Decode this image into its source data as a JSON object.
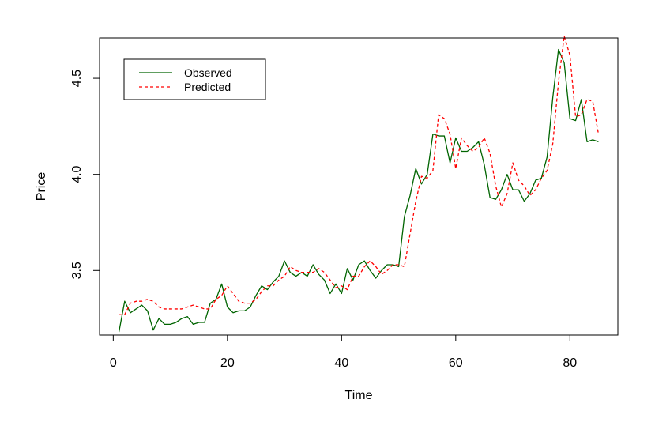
{
  "chart_data": {
    "type": "line",
    "title": "",
    "xlabel": "Time",
    "ylabel": "Price",
    "xlim": [
      -2.4,
      88.4
    ],
    "ylim": [
      3.164,
      4.71
    ],
    "x_ticks": [
      0,
      20,
      40,
      60,
      80
    ],
    "y_ticks": [
      3.5,
      4.0,
      4.5
    ],
    "x_tick_labels": [
      "0",
      "20",
      "40",
      "60",
      "80"
    ],
    "y_tick_labels": [
      "3.5",
      "4.0",
      "4.5"
    ],
    "grid": false,
    "legend_position": "top-left",
    "series": [
      {
        "name": "Observed",
        "color": "#006400",
        "line_style": "solid",
        "x": [
          1,
          2,
          3,
          4,
          5,
          6,
          7,
          8,
          9,
          10,
          11,
          12,
          13,
          14,
          15,
          16,
          17,
          18,
          19,
          20,
          21,
          22,
          23,
          24,
          25,
          26,
          27,
          28,
          29,
          30,
          31,
          32,
          33,
          34,
          35,
          36,
          37,
          38,
          39,
          40,
          41,
          42,
          43,
          44,
          45,
          46,
          47,
          48,
          49,
          50,
          51,
          52,
          53,
          54,
          55,
          56,
          57,
          58,
          59,
          60,
          61,
          62,
          63,
          64,
          65,
          66,
          67,
          68,
          69,
          70,
          71,
          72,
          73,
          74,
          75,
          76,
          77,
          78,
          79,
          80,
          81,
          82,
          83,
          84,
          85
        ],
        "values": [
          3.18,
          3.34,
          3.28,
          3.3,
          3.32,
          3.29,
          3.19,
          3.25,
          3.22,
          3.22,
          3.23,
          3.25,
          3.26,
          3.22,
          3.23,
          3.23,
          3.33,
          3.35,
          3.43,
          3.31,
          3.28,
          3.29,
          3.29,
          3.31,
          3.37,
          3.42,
          3.4,
          3.44,
          3.47,
          3.55,
          3.49,
          3.47,
          3.49,
          3.47,
          3.53,
          3.48,
          3.45,
          3.38,
          3.43,
          3.38,
          3.51,
          3.45,
          3.53,
          3.55,
          3.5,
          3.46,
          3.5,
          3.53,
          3.53,
          3.52,
          3.78,
          3.89,
          4.03,
          3.95,
          4.0,
          4.21,
          4.2,
          4.2,
          4.06,
          4.19,
          4.12,
          4.12,
          4.14,
          4.17,
          4.05,
          3.88,
          3.87,
          3.92,
          4.0,
          3.92,
          3.92,
          3.86,
          3.9,
          3.97,
          3.98,
          4.09,
          4.4,
          4.65,
          4.58,
          4.29,
          4.28,
          4.39,
          4.17,
          4.18,
          4.17
        ]
      },
      {
        "name": "Predicted",
        "color": "#ff0000",
        "line_style": "dashed",
        "x": [
          1,
          2,
          3,
          4,
          5,
          6,
          7,
          8,
          9,
          10,
          11,
          12,
          13,
          14,
          15,
          16,
          17,
          18,
          19,
          20,
          21,
          22,
          23,
          24,
          25,
          26,
          27,
          28,
          29,
          30,
          31,
          32,
          33,
          34,
          35,
          36,
          37,
          38,
          39,
          40,
          41,
          42,
          43,
          44,
          45,
          46,
          47,
          48,
          49,
          50,
          51,
          52,
          53,
          54,
          55,
          56,
          57,
          58,
          59,
          60,
          61,
          62,
          63,
          64,
          65,
          66,
          67,
          68,
          69,
          70,
          71,
          72,
          73,
          74,
          75,
          76,
          77,
          78,
          79,
          80,
          81,
          82,
          83,
          84,
          85
        ],
        "values": [
          3.27,
          3.27,
          3.33,
          3.34,
          3.34,
          3.35,
          3.34,
          3.31,
          3.3,
          3.3,
          3.3,
          3.3,
          3.31,
          3.32,
          3.31,
          3.3,
          3.3,
          3.35,
          3.37,
          3.42,
          3.38,
          3.34,
          3.33,
          3.33,
          3.35,
          3.39,
          3.42,
          3.42,
          3.45,
          3.47,
          3.52,
          3.5,
          3.49,
          3.49,
          3.49,
          3.51,
          3.49,
          3.45,
          3.41,
          3.42,
          3.4,
          3.47,
          3.47,
          3.52,
          3.55,
          3.52,
          3.48,
          3.5,
          3.53,
          3.53,
          3.52,
          3.69,
          3.86,
          3.99,
          3.98,
          4.02,
          4.31,
          4.29,
          4.21,
          4.03,
          4.19,
          4.15,
          4.12,
          4.14,
          4.19,
          4.11,
          3.94,
          3.83,
          3.9,
          4.06,
          3.97,
          3.94,
          3.89,
          3.92,
          3.98,
          4.02,
          4.16,
          4.48,
          4.72,
          4.62,
          4.3,
          4.31,
          4.39,
          4.38,
          4.21
        ]
      }
    ]
  }
}
